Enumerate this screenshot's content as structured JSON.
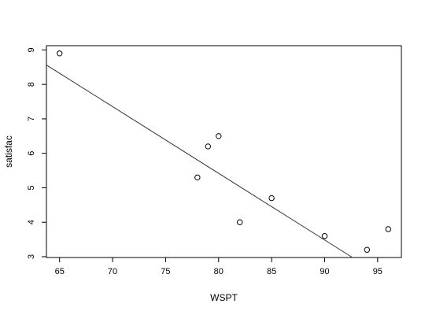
{
  "chart_data": {
    "type": "scatter",
    "title": "",
    "xlabel": "WSPT",
    "ylabel": "satisfac",
    "xlim": [
      63.76,
      97.24
    ],
    "ylim": [
      2.9764,
      9.1236
    ],
    "x_ticks": [
      65,
      70,
      75,
      80,
      85,
      90,
      95
    ],
    "y_ticks": [
      3,
      4,
      5,
      6,
      7,
      8,
      9
    ],
    "grid": false,
    "legend": "none",
    "series": [
      {
        "x": [
          65,
          78,
          79,
          80,
          82,
          85,
          90,
          94,
          96
        ],
        "y": [
          8.9,
          5.3,
          6.2,
          6.5,
          4.0,
          4.7,
          3.6,
          3.2,
          3.8
        ]
      }
    ],
    "fit_line": {
      "intercept": 20.9,
      "slope": -0.1935
    },
    "colors": {
      "ink": "#000000",
      "fit_line": "#333333"
    }
  }
}
